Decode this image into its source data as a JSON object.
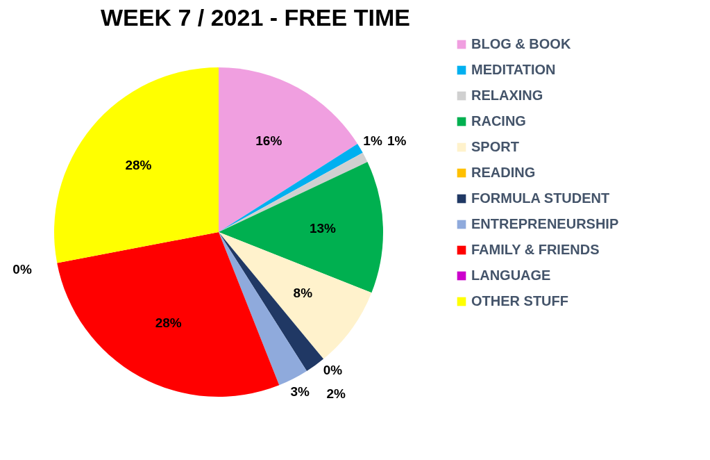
{
  "chart_data": {
    "type": "pie",
    "title": "WEEK 7 / 2021 - FREE TIME",
    "categories": [
      "BLOG & BOOK",
      "MEDITATION",
      "RELAXING",
      "RACING",
      "SPORT",
      "READING",
      "FORMULA STUDENT",
      "ENTREPRENEURSHIP",
      "FAMILY & FRIENDS",
      "LANGUAGE",
      "OTHER STUFF"
    ],
    "values": [
      16,
      1,
      1,
      13,
      8,
      0,
      2,
      3,
      28,
      0,
      28
    ],
    "value_labels": [
      "16%",
      "1%",
      "1%",
      "13%",
      "8%",
      "0%",
      "2%",
      "3%",
      "28%",
      "0%",
      "28%"
    ],
    "colors": [
      "#f09fe0",
      "#00b0f0",
      "#d0d0d0",
      "#00b050",
      "#fff2cc",
      "#ffc000",
      "#203864",
      "#8faadc",
      "#ff0000",
      "#cc00cc",
      "#ffff00"
    ],
    "legend": "right"
  }
}
